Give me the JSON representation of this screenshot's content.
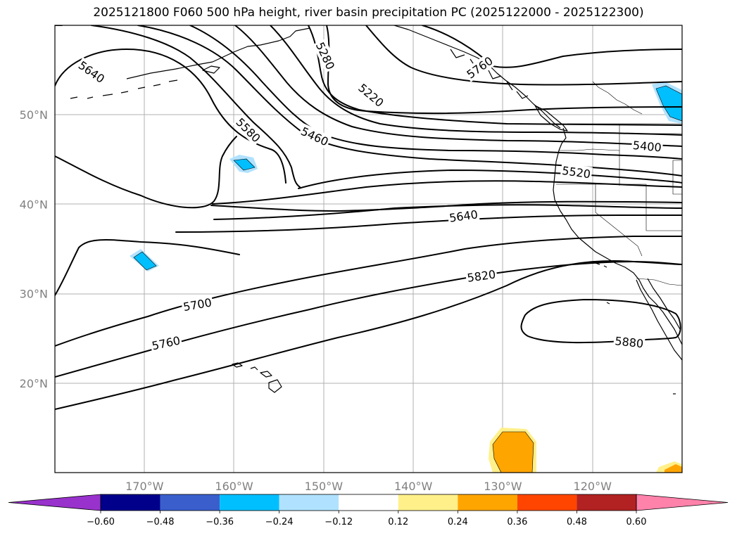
{
  "title": "2025121800 F060 500 hPa height, river basin precipitation PC (2025122000 - 2025122300)",
  "map": {
    "lon_range": [
      -180,
      -110
    ],
    "lat_range": [
      10,
      60
    ],
    "lat_labels": [
      {
        "lat": 50,
        "text": "50°N"
      },
      {
        "lat": 40,
        "text": "40°N"
      },
      {
        "lat": 30,
        "text": "30°N"
      },
      {
        "lat": 20,
        "text": "20°N"
      }
    ],
    "lon_labels": [
      {
        "lon": -170,
        "text": "170°W"
      },
      {
        "lon": -160,
        "text": "160°W"
      },
      {
        "lon": -150,
        "text": "150°W"
      },
      {
        "lon": -140,
        "text": "140°W"
      },
      {
        "lon": -130,
        "text": "130°W"
      },
      {
        "lon": -120,
        "text": "120°W"
      }
    ],
    "contour_labels": [
      {
        "text": "5640",
        "lon": -175.9,
        "lat": 54.8,
        "rot": 35
      },
      {
        "text": "5280",
        "lon": -149.8,
        "lat": 56.6,
        "rot": 65
      },
      {
        "text": "5220",
        "lon": -144.7,
        "lat": 52.2,
        "rot": 40
      },
      {
        "text": "5760",
        "lon": -132.6,
        "lat": 55.3,
        "rot": -35
      },
      {
        "text": "5580",
        "lon": -158.4,
        "lat": 48.3,
        "rot": 45
      },
      {
        "text": "5460",
        "lon": -151.0,
        "lat": 47.6,
        "rot": 25
      },
      {
        "text": "5400",
        "lon": -113.9,
        "lat": 46.5,
        "rot": 5
      },
      {
        "text": "5520",
        "lon": -121.8,
        "lat": 43.6,
        "rot": 8
      },
      {
        "text": "5640",
        "lon": -134.4,
        "lat": 38.7,
        "rot": -8
      },
      {
        "text": "5820",
        "lon": -132.4,
        "lat": 32.0,
        "rot": -8
      },
      {
        "text": "5700",
        "lon": -164.1,
        "lat": 28.8,
        "rot": -10
      },
      {
        "text": "5760",
        "lon": -167.6,
        "lat": 24.5,
        "rot": -12
      },
      {
        "text": "5880",
        "lon": -115.9,
        "lat": 24.6,
        "rot": 6
      }
    ]
  },
  "colorbar": {
    "colors": [
      "#9932cc",
      "#00008b",
      "#3a5fcd",
      "#00bfff",
      "#b0e2ff",
      "#ffffff",
      "#fff08a",
      "#ffa500",
      "#ff4500",
      "#b22222",
      "#ff82ab"
    ],
    "tick_labels": [
      "−0.60",
      "−0.48",
      "−0.36",
      "−0.24",
      "−0.12",
      "0.12",
      "0.24",
      "0.36",
      "0.48",
      "0.60"
    ]
  },
  "precip_colors": {
    "light_blue": "#b0e2ff",
    "blue": "#00bfff",
    "light_yellow": "#fff08a",
    "orange": "#ffa500"
  }
}
